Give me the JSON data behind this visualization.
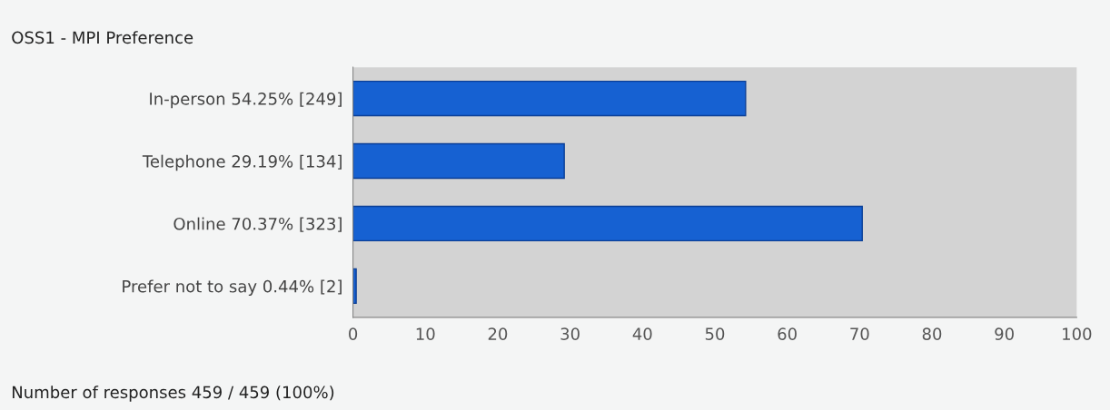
{
  "chart_data": {
    "type": "bar",
    "orientation": "horizontal",
    "title": "OSS1 - MPI Preference",
    "categories": [
      "In-person 54.25% [249]",
      "Telephone 29.19% [134]",
      "Online 70.37% [323]",
      "Prefer not to say 0.44% [2]"
    ],
    "values": [
      54.25,
      29.19,
      70.37,
      0.44
    ],
    "color": "#1661d2",
    "xlim": [
      0,
      100
    ],
    "xticks": [
      0,
      10,
      20,
      30,
      40,
      50,
      60,
      70,
      80,
      90,
      100
    ],
    "grid": false,
    "annotations": [
      "Number of responses 459 / 459 (100%)"
    ]
  }
}
